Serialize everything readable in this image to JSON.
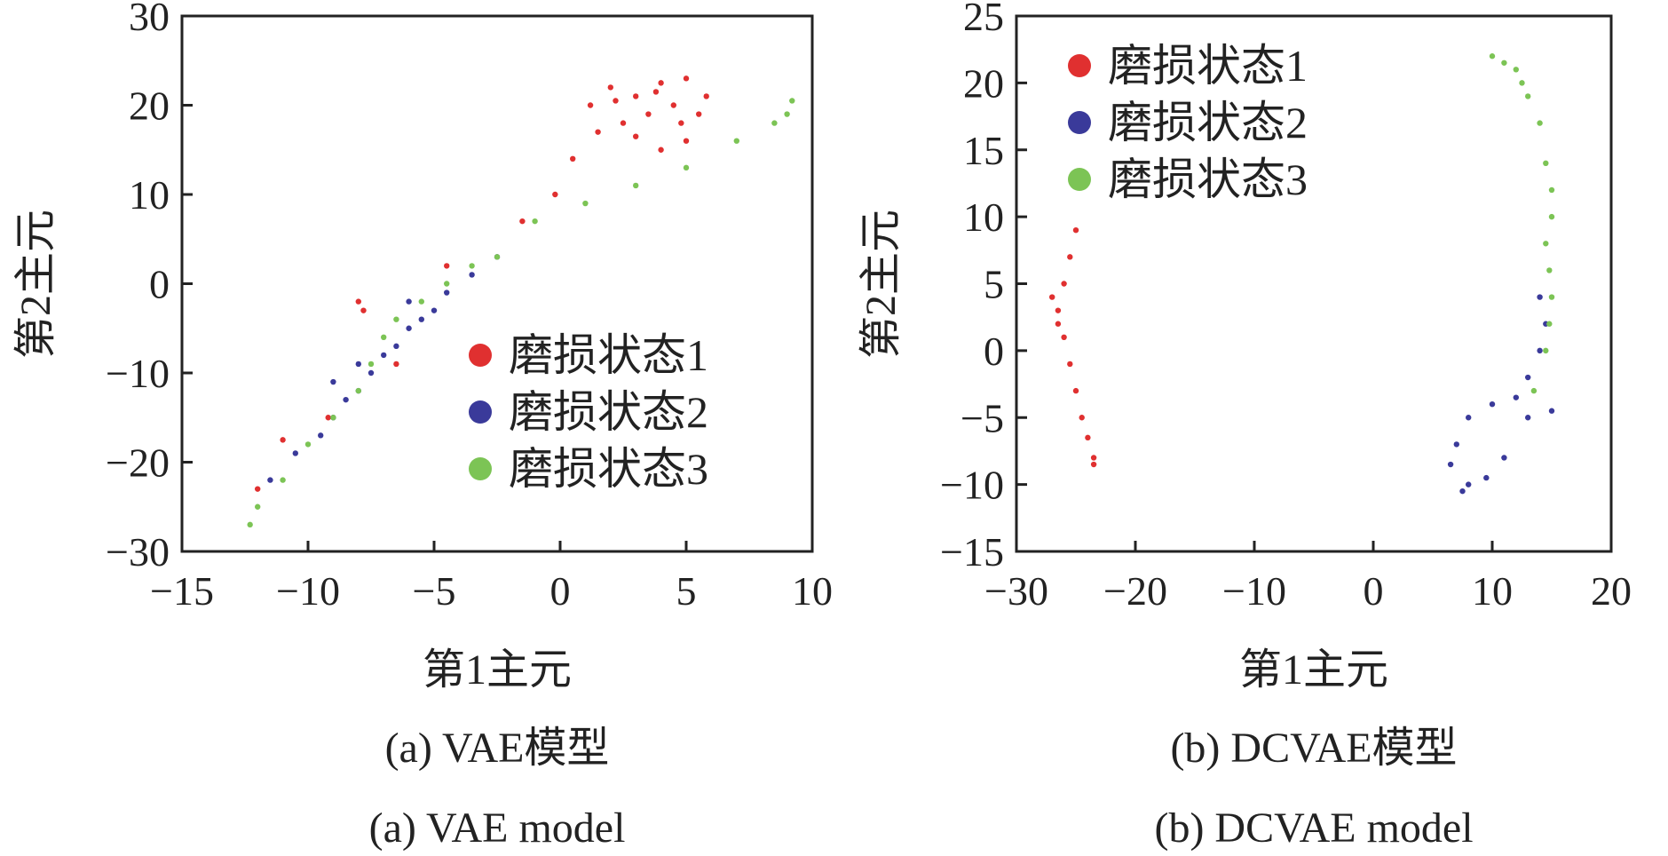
{
  "chart_data": [
    {
      "type": "scatter",
      "xlabel": "第1主元",
      "ylabel": "第2主元",
      "xlim": [
        -15,
        10
      ],
      "ylim": [
        -30,
        30
      ],
      "xticks": [
        "−15",
        "−10",
        "−5",
        "0",
        "5",
        "10"
      ],
      "yticks": [
        "30",
        "20",
        "10",
        "0",
        "−10",
        "−20",
        "−30"
      ],
      "caption_cn": "(a)  VAE模型",
      "caption_en": "(a)  VAE model",
      "legend_position": "bottom-right",
      "grid": false,
      "series": [
        {
          "name": "磨损状态1",
          "color": "#e03030",
          "points": [
            [
              1.2,
              20
            ],
            [
              2,
              22
            ],
            [
              3,
              21
            ],
            [
              4,
              22.5
            ],
            [
              5,
              23
            ],
            [
              5.8,
              21
            ],
            [
              3.5,
              19
            ],
            [
              2.5,
              18
            ],
            [
              4.5,
              20
            ],
            [
              5.5,
              19
            ],
            [
              1.5,
              17
            ],
            [
              3,
              16.5
            ],
            [
              4,
              15
            ],
            [
              5,
              16
            ],
            [
              2.2,
              20.5
            ],
            [
              3.8,
              21.5
            ],
            [
              4.8,
              18
            ],
            [
              0.5,
              14
            ],
            [
              -0.2,
              10
            ],
            [
              -1.5,
              7
            ],
            [
              -4.5,
              2
            ],
            [
              -7.8,
              -3
            ],
            [
              -8,
              -2
            ],
            [
              -6.5,
              -9
            ],
            [
              -9.2,
              -15
            ],
            [
              -11,
              -17.5
            ],
            [
              -12,
              -23
            ]
          ]
        },
        {
          "name": "磨损状态2",
          "color": "#3a3a9a",
          "points": [
            [
              -2.5,
              3
            ],
            [
              -3.5,
              1
            ],
            [
              -4.5,
              -1
            ],
            [
              -5,
              -3
            ],
            [
              -6,
              -5
            ],
            [
              -6.5,
              -7
            ],
            [
              -7,
              -8
            ],
            [
              -7.5,
              -10
            ],
            [
              -8,
              -12
            ],
            [
              -8.5,
              -13
            ],
            [
              -9,
              -15
            ],
            [
              -9.5,
              -17
            ],
            [
              -10.5,
              -19
            ],
            [
              -11.5,
              -22
            ],
            [
              -6,
              -2
            ],
            [
              -5.5,
              -4
            ],
            [
              -8,
              -9
            ],
            [
              -9,
              -11
            ]
          ]
        },
        {
          "name": "磨损状态3",
          "color": "#7cc455",
          "points": [
            [
              9,
              19
            ],
            [
              9.2,
              20.5
            ],
            [
              8.5,
              18
            ],
            [
              7,
              16
            ],
            [
              5,
              13
            ],
            [
              3,
              11
            ],
            [
              1,
              9
            ],
            [
              -1,
              7
            ],
            [
              -2.5,
              3
            ],
            [
              -3.5,
              2
            ],
            [
              -4.5,
              0
            ],
            [
              -5.5,
              -2
            ],
            [
              -6.5,
              -4
            ],
            [
              -7,
              -6
            ],
            [
              -7.5,
              -9
            ],
            [
              -8,
              -12
            ],
            [
              -9,
              -15
            ],
            [
              -10,
              -18
            ],
            [
              -11,
              -22
            ],
            [
              -12,
              -25
            ],
            [
              -12.3,
              -27
            ]
          ]
        }
      ]
    },
    {
      "type": "scatter",
      "xlabel": "第1主元",
      "ylabel": "第2主元",
      "xlim": [
        -30,
        20
      ],
      "ylim": [
        -15,
        25
      ],
      "xticks": [
        "−30",
        "−20",
        "−10",
        "0",
        "10",
        "20"
      ],
      "yticks": [
        "25",
        "20",
        "15",
        "10",
        "5",
        "0",
        "−5",
        "−10",
        "−15"
      ],
      "caption_cn": "(b)  DCVAE模型",
      "caption_en": "(b)  DCVAE model",
      "legend_position": "top-left",
      "grid": false,
      "series": [
        {
          "name": "磨损状态1",
          "color": "#e03030",
          "points": [
            [
              -25,
              9
            ],
            [
              -25.5,
              7
            ],
            [
              -26,
              5
            ],
            [
              -26.5,
              3
            ],
            [
              -26,
              1
            ],
            [
              -25.5,
              -1
            ],
            [
              -25,
              -3
            ],
            [
              -24.5,
              -5
            ],
            [
              -24,
              -6.5
            ],
            [
              -23.5,
              -8
            ],
            [
              -23.5,
              -8.5
            ],
            [
              -26.5,
              2
            ],
            [
              -27,
              4
            ]
          ]
        },
        {
          "name": "磨损状态2",
          "color": "#3a3a9a",
          "points": [
            [
              14,
              4
            ],
            [
              14.5,
              2
            ],
            [
              14,
              0
            ],
            [
              13,
              -2
            ],
            [
              12,
              -3.5
            ],
            [
              10,
              -4
            ],
            [
              8,
              -5
            ],
            [
              7,
              -7
            ],
            [
              6.5,
              -8.5
            ],
            [
              8,
              -10
            ],
            [
              9.5,
              -9.5
            ],
            [
              11,
              -8
            ],
            [
              13,
              -5
            ],
            [
              15,
              -4.5
            ],
            [
              7.5,
              -10.5
            ]
          ]
        },
        {
          "name": "磨损状态3",
          "color": "#7cc455",
          "points": [
            [
              10,
              22
            ],
            [
              12,
              21
            ],
            [
              13,
              19
            ],
            [
              14,
              17
            ],
            [
              14.5,
              14
            ],
            [
              15,
              12
            ],
            [
              15,
              10
            ],
            [
              14.5,
              8
            ],
            [
              14.8,
              6
            ],
            [
              15,
              4
            ],
            [
              14.8,
              2
            ],
            [
              14.5,
              0
            ],
            [
              13.5,
              -3
            ],
            [
              11,
              21.5
            ],
            [
              12.5,
              20
            ]
          ]
        }
      ]
    }
  ]
}
